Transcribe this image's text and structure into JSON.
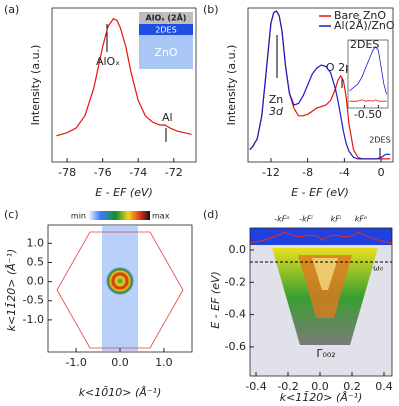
{
  "chart_data": [
    {
      "type": "line",
      "panel_label": "(a)",
      "ylabel": "Intensity (a.u.)",
      "xlabel": "E - EF (eV)",
      "xlim": [
        -78.85,
        -70.75
      ],
      "ylim": [
        0,
        1
      ],
      "xticks": [
        -78,
        -76,
        -74,
        -72
      ],
      "x": [
        -78.6,
        -78,
        -77.5,
        -77,
        -76.5,
        -76,
        -75.7,
        -75.4,
        -75.2,
        -75,
        -74.7,
        -74.4,
        -74,
        -73.6,
        -73.2,
        -72.8,
        -72.5,
        -72.2,
        -71.8,
        -71.4,
        -71
      ],
      "series": [
        {
          "color": "#e8120c",
          "values": [
            0.17,
            0.19,
            0.22,
            0.3,
            0.48,
            0.75,
            0.88,
            0.93,
            0.92,
            0.87,
            0.75,
            0.58,
            0.4,
            0.3,
            0.26,
            0.24,
            0.24,
            0.22,
            0.2,
            0.19,
            0.18
          ]
        }
      ],
      "annotations": [
        "AlOₓ",
        "Al"
      ],
      "layers": [
        "AlOₓ (2Å)",
        "2DES",
        "ZnO"
      ]
    },
    {
      "type": "line",
      "panel_label": "(b)",
      "ylabel": "Intensity (a.u.)",
      "xlabel": "E - EF (eV)",
      "xlim": [
        -14.5,
        1.3
      ],
      "ylim": [
        0,
        1
      ],
      "xticks": [
        -12,
        -8,
        -4,
        0
      ],
      "legend": "upper right",
      "x": [
        -14.3,
        -14,
        -13.5,
        -13,
        -12.5,
        -12,
        -11.7,
        -11.4,
        -11.1,
        -10.8,
        -10.4,
        -10,
        -9.5,
        -9,
        -8.5,
        -8,
        -7.5,
        -7,
        -6.5,
        -6,
        -5.5,
        -5,
        -4.7,
        -4.4,
        -4.1,
        -3.8,
        -3.5,
        -3,
        -2.5,
        -2,
        -1.5,
        -1,
        -0.5,
        0,
        0.5,
        1
      ],
      "series": [
        {
          "name": "Bare ZnO",
          "color": "#e8120c",
          "values": [
            0.08,
            0.1,
            0.15,
            0.3,
            0.6,
            0.9,
            0.97,
            0.98,
            0.95,
            0.85,
            0.62,
            0.45,
            0.35,
            0.3,
            0.3,
            0.31,
            0.33,
            0.35,
            0.36,
            0.37,
            0.4,
            0.47,
            0.53,
            0.56,
            0.53,
            0.42,
            0.25,
            0.08,
            0.03,
            0.02,
            0.02,
            0.02,
            0.02,
            0.02,
            0.02,
            0.02
          ]
        },
        {
          "name": "Al(2Å)/ZnO",
          "color": "#1a1ad0",
          "values": [
            0.08,
            0.1,
            0.15,
            0.3,
            0.6,
            0.9,
            0.97,
            0.98,
            0.95,
            0.85,
            0.62,
            0.45,
            0.37,
            0.38,
            0.43,
            0.5,
            0.57,
            0.61,
            0.63,
            0.62,
            0.58,
            0.48,
            0.4,
            0.3,
            0.2,
            0.12,
            0.07,
            0.03,
            0.02,
            0.02,
            0.02,
            0.02,
            0.02,
            0.03,
            0.05,
            0.05
          ]
        }
      ],
      "annotations": [
        "Zn",
        "3d",
        "O 2p",
        "2DES"
      ],
      "inset": {
        "label": "2DES",
        "xlim": [
          -1.1,
          0.35
        ],
        "ylim": [
          0,
          1
        ],
        "xticks": [
          -0.5,
          0
        ],
        "x": [
          -1.05,
          -0.9,
          -0.75,
          -0.6,
          -0.45,
          -0.3,
          -0.2,
          -0.1,
          0,
          0.1,
          0.2,
          0.3
        ],
        "series": [
          {
            "color": "#e8120c",
            "values": [
              0.1,
              0.1,
              0.1,
              0.12,
              0.1,
              0.11,
              0.1,
              0.12,
              0.1,
              0.1,
              0.1,
              0.1
            ]
          },
          {
            "color": "#1a1ad0",
            "values": [
              0.25,
              0.3,
              0.35,
              0.45,
              0.6,
              0.75,
              0.85,
              0.9,
              0.85,
              0.6,
              0.35,
              0.2
            ]
          }
        ]
      }
    },
    {
      "type": "image",
      "panel_label": "(c)",
      "ylabel": "k<11̄20> (Å⁻¹)",
      "xlabel": "k<10̄10> (Å⁻¹)",
      "xlim": [
        -1.64,
        1.64
      ],
      "ylim": [
        -1.84,
        1.48
      ],
      "xticks": [
        {
          "value": -1,
          "label": "-1.0"
        },
        {
          "value": 0,
          "label": "0.0"
        },
        {
          "value": 1,
          "label": "1.0"
        }
      ],
      "yticks": [
        {
          "value": -1,
          "label": "-1.0"
        },
        -0.5,
        {
          "value": 0,
          "label": "0.0"
        },
        0.5,
        {
          "value": 1,
          "label": "1.0"
        }
      ],
      "colorbar": [
        "min",
        "max"
      ]
    },
    {
      "type": "image",
      "panel_label": "(d)",
      "ylabel": "E - EF (eV)",
      "xlabel": "k<11̄20> (Å⁻¹)",
      "xlim": [
        -0.4375,
        0.45
      ],
      "ylim": [
        -0.78,
        0.136
      ],
      "xticks": [
        -0.4,
        -0.2,
        {
          "value": 0,
          "label": "0.0"
        },
        0.2,
        0.4
      ],
      "yticks": [
        {
          "value": 0,
          "label": "0.0"
        },
        -0.2,
        -0.4,
        -0.6
      ],
      "annotations": [
        "-kFᵒ",
        "-kFⁱ",
        "kFⁱ",
        "kFᵒ",
        "ω₀",
        "Γ₀₀₂"
      ]
    }
  ]
}
